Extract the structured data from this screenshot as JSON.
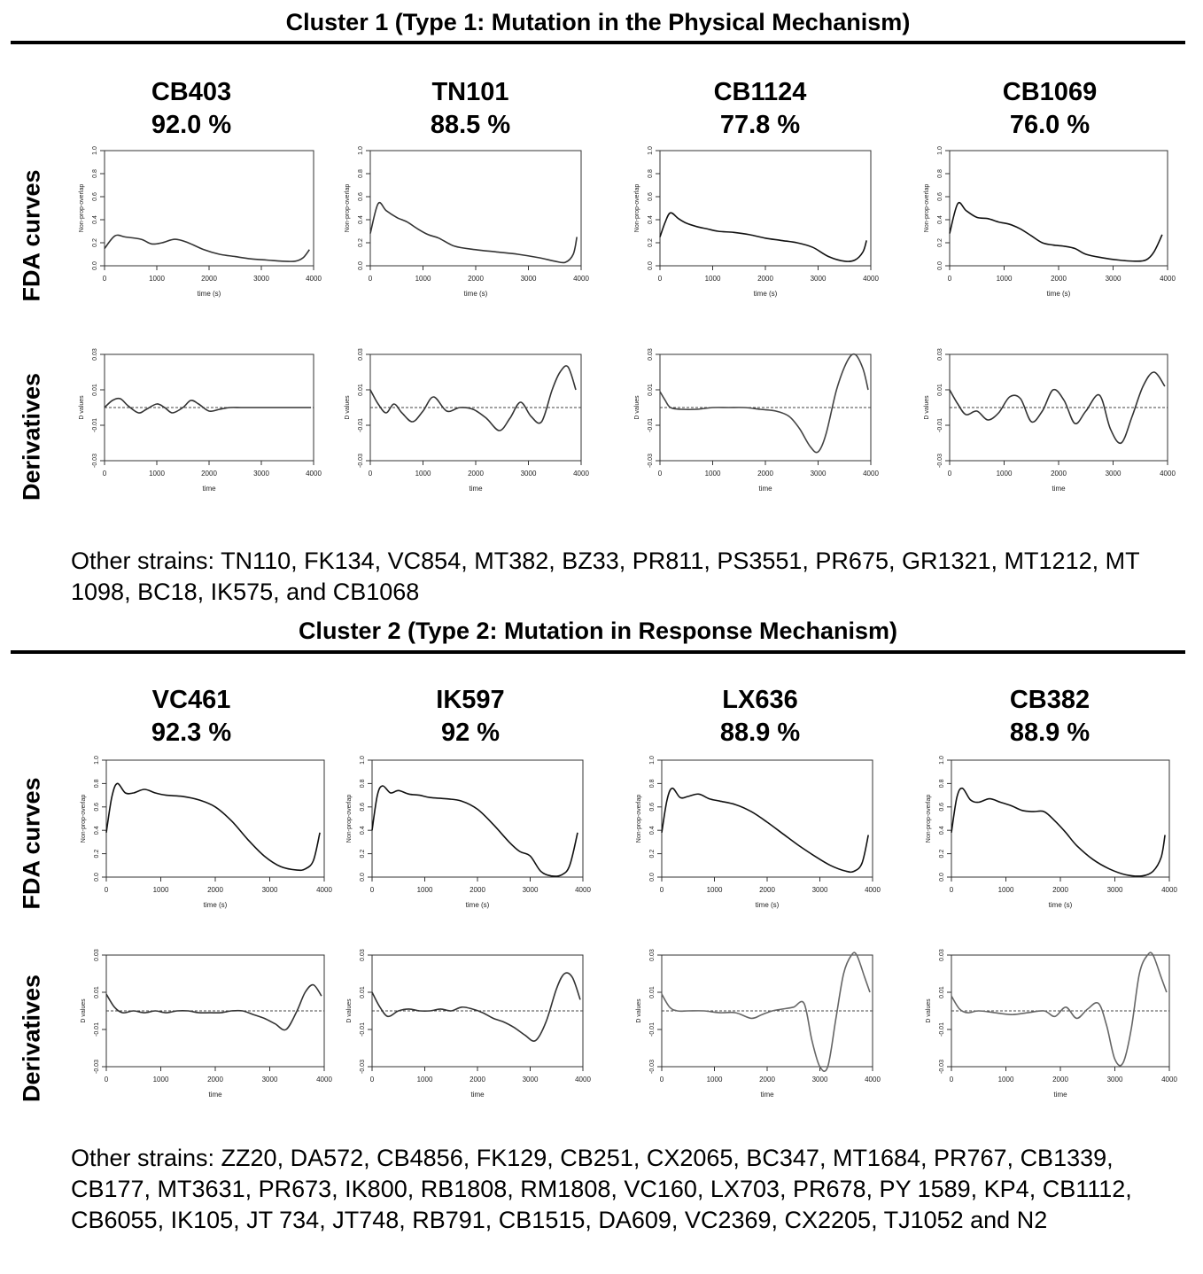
{
  "clusters": [
    {
      "title": "Cluster 1 (Type 1: Mutation in the Physical Mechanism)",
      "row_labels": {
        "fda": "FDA curves",
        "derivatives": "Derivatives"
      },
      "strains": [
        {
          "name": "CB403",
          "percent": "92.0 %"
        },
        {
          "name": "TN101",
          "percent": "88.5 %"
        },
        {
          "name": "CB1124",
          "percent": "77.8 %"
        },
        {
          "name": "CB1069",
          "percent": "76.0 %"
        }
      ],
      "other_strains": "Other strains: TN110, FK134, VC854, MT382, BZ33, PR811, PS3551, PR675, GR1321, MT1212, MT 1098, BC18, IK575, and CB1068"
    },
    {
      "title": "Cluster 2 (Type 2: Mutation in Response Mechanism)",
      "row_labels": {
        "fda": "FDA curves",
        "derivatives": "Derivatives"
      },
      "strains": [
        {
          "name": "VC461",
          "percent": "92.3 %"
        },
        {
          "name": "IK597",
          "percent": "92 %"
        },
        {
          "name": "LX636",
          "percent": "88.9 %"
        },
        {
          "name": "CB382",
          "percent": "88.9 %"
        }
      ],
      "other_strains": "Other strains: ZZ20, DA572, CB4856, FK129, CB251, CX2065, BC347, MT1684, PR767, CB1339, CB177, MT3631, PR673, IK800, RB1808, RM1808, VC160, LX703, PR678, PY 1589, KP4, CB1112, CB6055, IK105, JT 734, JT748, RB791, CB1515, DA609, VC2369, CX2205, TJ1052 and N2"
    }
  ],
  "chart_data": [
    {
      "type": "line",
      "cluster": 1,
      "strain": "CB403",
      "panel": "fda",
      "xlabel": "time (s)",
      "ylabel": "Non-prop-overlap",
      "xlim": [
        0,
        4000
      ],
      "ylim": [
        0,
        1
      ],
      "xticks": [
        0,
        1000,
        2000,
        3000,
        4000
      ],
      "yticks": [
        "0.0",
        "0.2",
        "0.4",
        "0.6",
        "0.8",
        "1.0"
      ],
      "color": "#333333",
      "x": [
        0,
        200,
        400,
        700,
        900,
        1100,
        1350,
        1600,
        1900,
        2200,
        2500,
        2800,
        3100,
        3400,
        3650,
        3800,
        3920
      ],
      "y": [
        0.15,
        0.26,
        0.25,
        0.23,
        0.19,
        0.2,
        0.23,
        0.2,
        0.14,
        0.1,
        0.08,
        0.06,
        0.05,
        0.04,
        0.04,
        0.07,
        0.14
      ]
    },
    {
      "type": "line",
      "cluster": 1,
      "strain": "CB403",
      "panel": "derivatives",
      "xlabel": "time",
      "ylabel": "D values",
      "xlim": [
        0,
        4000
      ],
      "ylim": [
        -0.03,
        0.03
      ],
      "xticks": [
        0,
        1000,
        2000,
        3000,
        4000
      ],
      "yticks": [
        "-0.03",
        "-0.01",
        "0.01",
        "0.03"
      ],
      "color": "#333333",
      "zero_line": true,
      "x": [
        0,
        150,
        300,
        450,
        650,
        800,
        1000,
        1150,
        1300,
        1500,
        1650,
        1800,
        2000,
        2200,
        2400,
        2600,
        2800,
        3000,
        3200,
        3400,
        3600,
        3800,
        3950
      ],
      "y": [
        0.0,
        0.004,
        0.005,
        0.001,
        -0.003,
        -0.001,
        0.002,
        0.0,
        -0.003,
        0.0,
        0.004,
        0.002,
        -0.002,
        -0.001,
        0.0,
        0.0,
        0.0,
        0.0,
        0.0,
        0.0,
        0.0,
        0.0,
        0.0
      ]
    },
    {
      "type": "line",
      "cluster": 1,
      "strain": "TN101",
      "panel": "fda",
      "xlabel": "time (s)",
      "ylabel": "Non-prop-overlap",
      "xlim": [
        0,
        4000
      ],
      "ylim": [
        0,
        1
      ],
      "xticks": [
        0,
        1000,
        2000,
        3000,
        4000
      ],
      "yticks": [
        "0.0",
        "0.2",
        "0.4",
        "0.6",
        "0.8",
        "1.0"
      ],
      "color": "#333333",
      "x": [
        0,
        150,
        300,
        500,
        700,
        900,
        1100,
        1300,
        1600,
        2000,
        2400,
        2800,
        3200,
        3500,
        3700,
        3850,
        3920
      ],
      "y": [
        0.28,
        0.54,
        0.48,
        0.42,
        0.38,
        0.32,
        0.27,
        0.24,
        0.17,
        0.14,
        0.12,
        0.1,
        0.07,
        0.04,
        0.03,
        0.1,
        0.25
      ]
    },
    {
      "type": "line",
      "cluster": 1,
      "strain": "TN101",
      "panel": "derivatives",
      "xlabel": "time",
      "ylabel": "D values",
      "xlim": [
        0,
        4000
      ],
      "ylim": [
        -0.03,
        0.03
      ],
      "xticks": [
        0,
        1000,
        2000,
        3000,
        4000
      ],
      "yticks": [
        "-0.03",
        "-0.01",
        "0.01",
        "0.03"
      ],
      "color": "#333333",
      "zero_line": true,
      "x": [
        0,
        150,
        300,
        450,
        600,
        800,
        1000,
        1200,
        1450,
        1700,
        1950,
        2200,
        2450,
        2650,
        2850,
        3050,
        3250,
        3450,
        3600,
        3750,
        3900
      ],
      "y": [
        0.01,
        0.002,
        -0.003,
        0.002,
        -0.003,
        -0.008,
        -0.002,
        0.006,
        -0.002,
        0.0,
        -0.001,
        -0.006,
        -0.013,
        -0.006,
        0.003,
        -0.005,
        -0.008,
        0.01,
        0.02,
        0.023,
        0.01
      ]
    },
    {
      "type": "line",
      "cluster": 1,
      "strain": "CB1124",
      "panel": "fda",
      "xlabel": "time (s)",
      "ylabel": "Non-prop-overlap",
      "xlim": [
        0,
        4000
      ],
      "ylim": [
        0,
        1
      ],
      "xticks": [
        0,
        1000,
        2000,
        3000,
        4000
      ],
      "yticks": [
        "0.0",
        "0.2",
        "0.4",
        "0.6",
        "0.8",
        "1.0"
      ],
      "color": "#111111",
      "x": [
        0,
        100,
        200,
        350,
        500,
        700,
        900,
        1100,
        1400,
        1700,
        2000,
        2300,
        2600,
        2900,
        3200,
        3500,
        3700,
        3850,
        3920
      ],
      "y": [
        0.25,
        0.38,
        0.46,
        0.41,
        0.37,
        0.34,
        0.32,
        0.3,
        0.29,
        0.27,
        0.24,
        0.22,
        0.2,
        0.16,
        0.08,
        0.04,
        0.05,
        0.12,
        0.22
      ]
    },
    {
      "type": "line",
      "cluster": 1,
      "strain": "CB1124",
      "panel": "derivatives",
      "xlabel": "time",
      "ylabel": "D values",
      "xlim": [
        0,
        4000
      ],
      "ylim": [
        -0.03,
        0.03
      ],
      "xticks": [
        0,
        1000,
        2000,
        3000,
        4000
      ],
      "yticks": [
        "-0.03",
        "-0.01",
        "0.01",
        "0.03"
      ],
      "color": "#444444",
      "zero_line": true,
      "x": [
        0,
        100,
        200,
        400,
        700,
        1000,
        1300,
        1600,
        1900,
        2200,
        2450,
        2650,
        2850,
        3000,
        3150,
        3350,
        3550,
        3700,
        3850,
        3950
      ],
      "y": [
        0.009,
        0.004,
        0.0,
        -0.001,
        -0.001,
        0.0,
        0.0,
        0.0,
        -0.001,
        -0.002,
        -0.005,
        -0.012,
        -0.022,
        -0.025,
        -0.015,
        0.01,
        0.026,
        0.03,
        0.022,
        0.01
      ]
    },
    {
      "type": "line",
      "cluster": 1,
      "strain": "CB1069",
      "panel": "fda",
      "xlabel": "time (s)",
      "ylabel": "Non-prop-overlap",
      "xlim": [
        0,
        4000
      ],
      "ylim": [
        0,
        1
      ],
      "xticks": [
        0,
        1000,
        2000,
        3000,
        4000
      ],
      "yticks": [
        "0.0",
        "0.2",
        "0.4",
        "0.6",
        "0.8",
        "1.0"
      ],
      "color": "#111111",
      "x": [
        0,
        150,
        300,
        500,
        700,
        900,
        1100,
        1300,
        1500,
        1700,
        1900,
        2100,
        2300,
        2500,
        2800,
        3100,
        3400,
        3600,
        3750,
        3900
      ],
      "y": [
        0.28,
        0.54,
        0.48,
        0.42,
        0.41,
        0.38,
        0.36,
        0.32,
        0.26,
        0.2,
        0.18,
        0.17,
        0.15,
        0.1,
        0.07,
        0.05,
        0.04,
        0.05,
        0.12,
        0.27
      ]
    },
    {
      "type": "line",
      "cluster": 1,
      "strain": "CB1069",
      "panel": "derivatives",
      "xlabel": "time",
      "ylabel": "D values",
      "xlim": [
        0,
        4000
      ],
      "ylim": [
        -0.03,
        0.03
      ],
      "xticks": [
        0,
        1000,
        2000,
        3000,
        4000
      ],
      "yticks": [
        "-0.03",
        "-0.01",
        "0.01",
        "0.03"
      ],
      "color": "#333333",
      "zero_line": true,
      "x": [
        0,
        150,
        300,
        500,
        700,
        900,
        1100,
        1300,
        1500,
        1700,
        1900,
        2100,
        2300,
        2500,
        2750,
        2950,
        3150,
        3350,
        3550,
        3750,
        3950
      ],
      "y": [
        0.01,
        0.002,
        -0.004,
        -0.002,
        -0.007,
        -0.003,
        0.006,
        0.005,
        -0.008,
        -0.002,
        0.01,
        0.004,
        -0.009,
        -0.002,
        0.007,
        -0.012,
        -0.02,
        -0.005,
        0.012,
        0.02,
        0.012
      ]
    },
    {
      "type": "line",
      "cluster": 2,
      "strain": "VC461",
      "panel": "fda",
      "xlabel": "time (s)",
      "ylabel": "Non-prop-overlap",
      "xlim": [
        0,
        4000
      ],
      "ylim": [
        0,
        1
      ],
      "xticks": [
        0,
        1000,
        2000,
        3000,
        4000
      ],
      "yticks": [
        "0.0",
        "0.2",
        "0.4",
        "0.6",
        "0.8",
        "1.0"
      ],
      "color": "#111111",
      "x": [
        0,
        100,
        200,
        350,
        500,
        700,
        900,
        1100,
        1400,
        1700,
        2000,
        2300,
        2600,
        2900,
        3200,
        3500,
        3650,
        3800,
        3920
      ],
      "y": [
        0.38,
        0.68,
        0.8,
        0.72,
        0.72,
        0.75,
        0.72,
        0.7,
        0.69,
        0.66,
        0.6,
        0.48,
        0.32,
        0.18,
        0.09,
        0.06,
        0.07,
        0.14,
        0.38
      ]
    },
    {
      "type": "line",
      "cluster": 2,
      "strain": "VC461",
      "panel": "derivatives",
      "xlabel": "time",
      "ylabel": "D values",
      "xlim": [
        0,
        4000
      ],
      "ylim": [
        -0.03,
        0.03
      ],
      "xticks": [
        0,
        1000,
        2000,
        3000,
        4000
      ],
      "yticks": [
        "-0.03",
        "-0.01",
        "0.01",
        "0.03"
      ],
      "color": "#333333",
      "zero_line": true,
      "x": [
        0,
        150,
        300,
        500,
        700,
        900,
        1100,
        1300,
        1500,
        1700,
        1900,
        2100,
        2300,
        2500,
        2700,
        2900,
        3100,
        3300,
        3500,
        3650,
        3800,
        3950
      ],
      "y": [
        0.009,
        0.002,
        -0.001,
        0.0,
        -0.001,
        0.0,
        -0.001,
        0.0,
        0.0,
        -0.001,
        -0.001,
        -0.001,
        0.0,
        0.0,
        -0.002,
        -0.004,
        -0.007,
        -0.01,
        0.0,
        0.01,
        0.014,
        0.008
      ]
    },
    {
      "type": "line",
      "cluster": 2,
      "strain": "IK597",
      "panel": "fda",
      "xlabel": "time (s)",
      "ylabel": "Non-prop-overlap",
      "xlim": [
        0,
        4000
      ],
      "ylim": [
        0,
        1
      ],
      "xticks": [
        0,
        1000,
        2000,
        3000,
        4000
      ],
      "yticks": [
        "0.0",
        "0.2",
        "0.4",
        "0.6",
        "0.8",
        "1.0"
      ],
      "color": "#111111",
      "x": [
        0,
        100,
        200,
        350,
        500,
        700,
        900,
        1100,
        1400,
        1700,
        2000,
        2300,
        2600,
        2800,
        3000,
        3200,
        3400,
        3600,
        3750,
        3900
      ],
      "y": [
        0.4,
        0.7,
        0.78,
        0.72,
        0.74,
        0.71,
        0.7,
        0.68,
        0.67,
        0.65,
        0.58,
        0.45,
        0.3,
        0.22,
        0.18,
        0.05,
        0.01,
        0.02,
        0.1,
        0.38
      ]
    },
    {
      "type": "line",
      "cluster": 2,
      "strain": "IK597",
      "panel": "derivatives",
      "xlabel": "time",
      "ylabel": "D values",
      "xlim": [
        0,
        4000
      ],
      "ylim": [
        -0.03,
        0.03
      ],
      "xticks": [
        0,
        1000,
        2000,
        3000,
        4000
      ],
      "yticks": [
        "-0.03",
        "-0.01",
        "0.01",
        "0.03"
      ],
      "color": "#333333",
      "zero_line": true,
      "x": [
        0,
        150,
        300,
        500,
        700,
        900,
        1100,
        1300,
        1500,
        1700,
        1900,
        2100,
        2300,
        2500,
        2700,
        2900,
        3100,
        3300,
        3500,
        3650,
        3800,
        3950
      ],
      "y": [
        0.01,
        0.002,
        -0.003,
        0.0,
        0.001,
        0.0,
        0.0,
        0.001,
        0.0,
        0.002,
        0.001,
        -0.001,
        -0.004,
        -0.006,
        -0.009,
        -0.013,
        -0.016,
        -0.006,
        0.012,
        0.02,
        0.018,
        0.006
      ]
    },
    {
      "type": "line",
      "cluster": 2,
      "strain": "LX636",
      "panel": "fda",
      "xlabel": "time (s)",
      "ylabel": "Non-prop-overlap",
      "xlim": [
        0,
        4000
      ],
      "ylim": [
        0,
        1
      ],
      "xticks": [
        0,
        1000,
        2000,
        3000,
        4000
      ],
      "yticks": [
        "0.0",
        "0.2",
        "0.4",
        "0.6",
        "0.8",
        "1.0"
      ],
      "color": "#111111",
      "x": [
        0,
        100,
        200,
        350,
        500,
        700,
        900,
        1100,
        1400,
        1700,
        2000,
        2300,
        2600,
        2900,
        3200,
        3500,
        3650,
        3800,
        3920
      ],
      "y": [
        0.38,
        0.66,
        0.76,
        0.68,
        0.69,
        0.71,
        0.67,
        0.65,
        0.62,
        0.56,
        0.47,
        0.37,
        0.27,
        0.18,
        0.1,
        0.05,
        0.05,
        0.12,
        0.36
      ]
    },
    {
      "type": "line",
      "cluster": 2,
      "strain": "LX636",
      "panel": "derivatives",
      "xlabel": "time",
      "ylabel": "D values",
      "xlim": [
        0,
        4000
      ],
      "ylim": [
        -0.03,
        0.03
      ],
      "xticks": [
        0,
        1000,
        2000,
        3000,
        4000
      ],
      "yticks": [
        "-0.03",
        "-0.01",
        "0.01",
        "0.03"
      ],
      "color": "#666666",
      "zero_line": true,
      "x": [
        0,
        150,
        300,
        500,
        800,
        1100,
        1400,
        1700,
        1900,
        2100,
        2300,
        2500,
        2700,
        2850,
        3000,
        3150,
        3300,
        3450,
        3600,
        3700,
        3850,
        3950
      ],
      "y": [
        0.009,
        0.002,
        0.0,
        0.0,
        0.0,
        -0.001,
        -0.001,
        -0.004,
        -0.002,
        0.0,
        0.001,
        0.002,
        0.004,
        -0.016,
        -0.032,
        -0.03,
        -0.005,
        0.02,
        0.032,
        0.031,
        0.018,
        0.01
      ]
    },
    {
      "type": "line",
      "cluster": 2,
      "strain": "CB382",
      "panel": "fda",
      "xlabel": "time (s)",
      "ylabel": "Non-prop-overlap",
      "xlim": [
        0,
        4000
      ],
      "ylim": [
        0,
        1
      ],
      "xticks": [
        0,
        1000,
        2000,
        3000,
        4000
      ],
      "yticks": [
        "0.0",
        "0.2",
        "0.4",
        "0.6",
        "0.8",
        "1.0"
      ],
      "color": "#111111",
      "x": [
        0,
        100,
        200,
        350,
        500,
        700,
        900,
        1100,
        1300,
        1500,
        1700,
        1900,
        2100,
        2300,
        2600,
        2900,
        3200,
        3500,
        3700,
        3850,
        3920
      ],
      "y": [
        0.38,
        0.68,
        0.76,
        0.66,
        0.64,
        0.67,
        0.64,
        0.61,
        0.57,
        0.56,
        0.56,
        0.48,
        0.38,
        0.27,
        0.15,
        0.07,
        0.02,
        0.01,
        0.05,
        0.17,
        0.36
      ]
    },
    {
      "type": "line",
      "cluster": 2,
      "strain": "CB382",
      "panel": "derivatives",
      "xlabel": "time",
      "ylabel": "D values",
      "xlim": [
        0,
        4000
      ],
      "ylim": [
        -0.03,
        0.03
      ],
      "xticks": [
        0,
        1000,
        2000,
        3000,
        4000
      ],
      "yticks": [
        "-0.03",
        "-0.01",
        "0.01",
        "0.03"
      ],
      "color": "#666666",
      "zero_line": true,
      "x": [
        0,
        150,
        300,
        500,
        800,
        1100,
        1400,
        1700,
        1900,
        2100,
        2300,
        2500,
        2700,
        2850,
        3000,
        3150,
        3300,
        3450,
        3600,
        3700,
        3850,
        3950
      ],
      "y": [
        0.008,
        0.001,
        -0.001,
        0.0,
        -0.001,
        -0.002,
        -0.001,
        0.0,
        -0.003,
        0.002,
        -0.004,
        0.001,
        0.004,
        -0.008,
        -0.026,
        -0.028,
        -0.01,
        0.02,
        0.032,
        0.03,
        0.018,
        0.01
      ]
    }
  ]
}
